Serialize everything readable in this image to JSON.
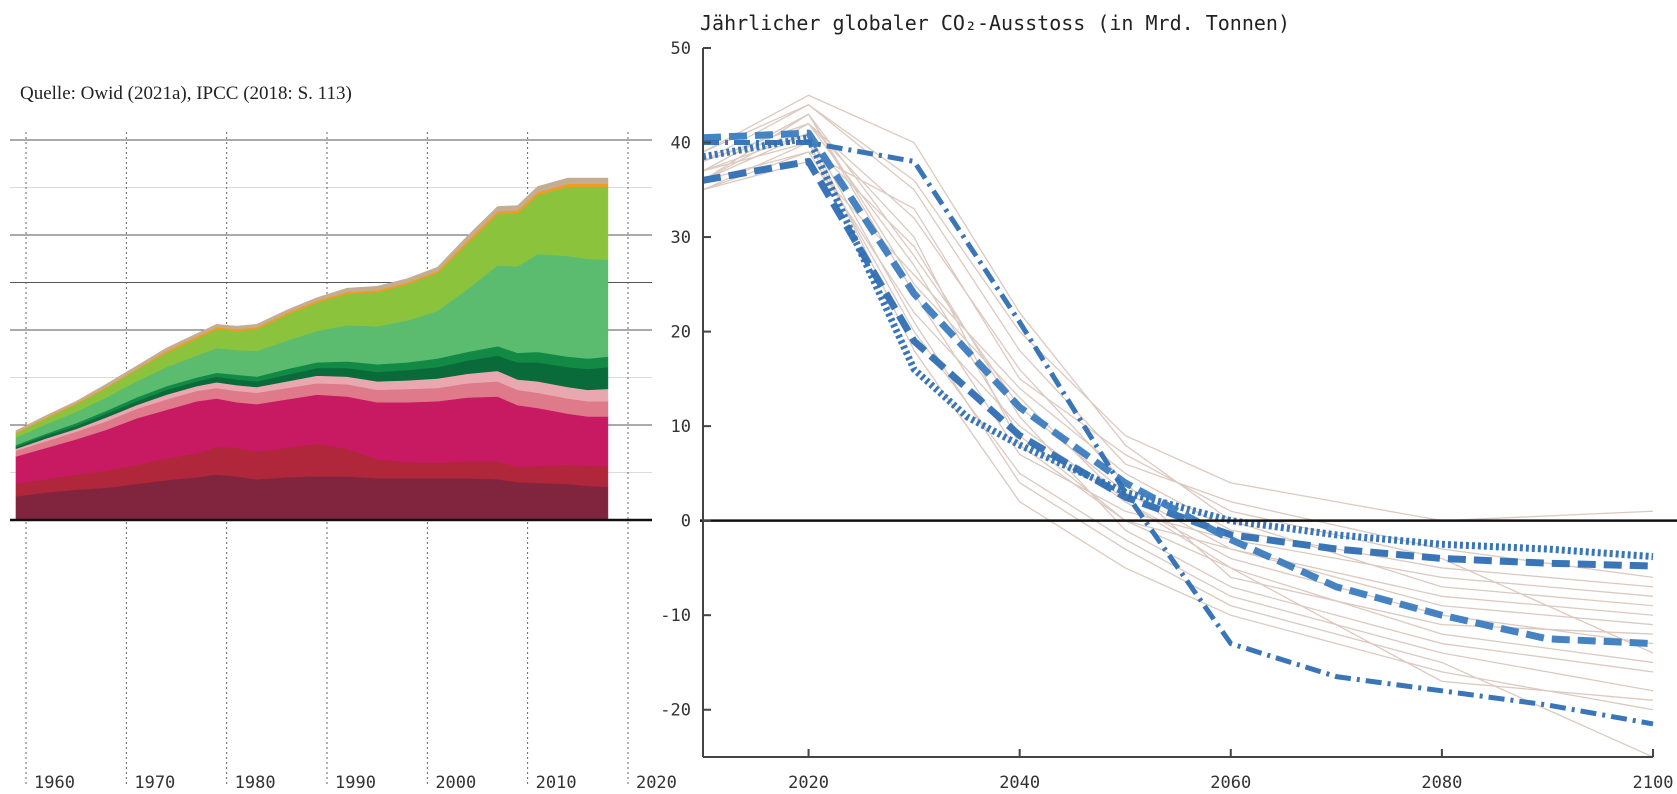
{
  "chart_data": [
    {
      "type": "area",
      "caption": "Quelle: Owid (2021a), IPCC (2018: S. 113)",
      "x_ticks": [
        "1960",
        "1970",
        "1980",
        "1990",
        "2000",
        "2010",
        "2020"
      ],
      "xlim": [
        1959,
        2021
      ],
      "ylim": [
        0,
        40
      ],
      "grid": true,
      "years": [
        1959,
        1962,
        1965,
        1968,
        1971,
        1974,
        1977,
        1979,
        1981,
        1983,
        1986,
        1989,
        1992,
        1995,
        1998,
        2001,
        2004,
        2007,
        2009,
        2011,
        2014,
        2016,
        2018
      ],
      "series": [
        {
          "color": "#81253f",
          "values": [
            2.5,
            2.9,
            3.2,
            3.4,
            3.8,
            4.2,
            4.5,
            4.8,
            4.6,
            4.3,
            4.5,
            4.6,
            4.6,
            4.4,
            4.4,
            4.4,
            4.4,
            4.3,
            4.0,
            3.9,
            3.8,
            3.6,
            3.5
          ]
        },
        {
          "color": "#b0263b",
          "values": [
            1.3,
            1.4,
            1.6,
            1.8,
            2.0,
            2.3,
            2.5,
            2.9,
            3.0,
            2.9,
            3.1,
            3.4,
            2.9,
            2.0,
            1.7,
            1.6,
            1.8,
            1.9,
            1.6,
            1.8,
            2.0,
            2.1,
            2.2
          ]
        },
        {
          "color": "#c81a63",
          "values": [
            2.9,
            3.3,
            3.7,
            4.3,
            4.9,
            5.1,
            5.5,
            5.1,
            4.8,
            5.0,
            5.1,
            5.2,
            5.5,
            6.0,
            6.3,
            6.5,
            6.7,
            6.8,
            6.5,
            6.1,
            5.4,
            5.2,
            5.2
          ]
        },
        {
          "color": "#de7a89",
          "values": [
            0.6,
            0.7,
            0.8,
            0.9,
            1.0,
            1.1,
            1.1,
            1.1,
            1.2,
            1.2,
            1.2,
            1.2,
            1.3,
            1.3,
            1.4,
            1.4,
            1.5,
            1.6,
            1.6,
            1.6,
            1.6,
            1.6,
            1.6
          ]
        },
        {
          "color": "#e9a8b0",
          "values": [
            0.2,
            0.3,
            0.3,
            0.4,
            0.4,
            0.5,
            0.5,
            0.6,
            0.6,
            0.6,
            0.7,
            0.8,
            0.8,
            0.9,
            0.9,
            1.0,
            1.0,
            1.1,
            1.1,
            1.2,
            1.2,
            1.2,
            1.3
          ]
        },
        {
          "color": "#0a6b3a",
          "values": [
            0.2,
            0.3,
            0.3,
            0.4,
            0.4,
            0.5,
            0.5,
            0.6,
            0.6,
            0.6,
            0.7,
            0.8,
            0.9,
            1.0,
            1.1,
            1.2,
            1.4,
            1.6,
            1.8,
            2.0,
            2.1,
            2.2,
            2.3
          ]
        },
        {
          "color": "#128a45",
          "values": [
            0.2,
            0.2,
            0.3,
            0.3,
            0.4,
            0.4,
            0.4,
            0.4,
            0.5,
            0.5,
            0.6,
            0.6,
            0.7,
            0.8,
            0.8,
            0.9,
            0.9,
            1.0,
            1.0,
            1.1,
            1.1,
            1.1,
            1.1
          ]
        },
        {
          "color": "#5bbb6e",
          "values": [
            0.8,
            1.0,
            1.2,
            1.4,
            1.7,
            2.0,
            2.3,
            2.6,
            2.6,
            2.7,
            3.0,
            3.3,
            3.8,
            4.0,
            4.4,
            5.0,
            6.6,
            8.5,
            9.1,
            10.3,
            10.6,
            10.5,
            10.2
          ]
        },
        {
          "color": "#8bc43c",
          "values": [
            0.4,
            0.6,
            0.8,
            1.0,
            1.2,
            1.5,
            1.8,
            2.0,
            2.0,
            2.3,
            2.7,
            3.0,
            3.3,
            3.6,
            3.8,
            4.0,
            4.8,
            5.4,
            5.6,
            6.2,
            7.3,
            7.6,
            7.7
          ]
        },
        {
          "color": "#f39a21",
          "values": [
            0.1,
            0.1,
            0.1,
            0.1,
            0.1,
            0.2,
            0.2,
            0.2,
            0.2,
            0.2,
            0.2,
            0.2,
            0.2,
            0.2,
            0.2,
            0.2,
            0.3,
            0.3,
            0.3,
            0.3,
            0.3,
            0.3,
            0.3
          ]
        },
        {
          "color": "#c3ae93",
          "values": [
            0.2,
            0.2,
            0.2,
            0.3,
            0.3,
            0.3,
            0.3,
            0.3,
            0.3,
            0.3,
            0.3,
            0.3,
            0.4,
            0.4,
            0.4,
            0.4,
            0.5,
            0.5,
            0.5,
            0.6,
            0.6,
            0.6,
            0.6
          ]
        }
      ]
    },
    {
      "type": "line",
      "title": "Jährlicher globaler CO₂-Ausstoss (in Mrd. Tonnen)",
      "xlim": [
        2010,
        2100
      ],
      "ylim": [
        -25,
        50
      ],
      "x_ticks": [
        "2020",
        "2040",
        "2060",
        "2080",
        "2100"
      ],
      "y_ticks": [
        "50",
        "40",
        "30",
        "20",
        "10",
        "0",
        "-10",
        "-20"
      ],
      "zero_line": true,
      "highlighted": [
        {
          "style": "dotted",
          "color": "#2f6fb3",
          "points": [
            [
              2010,
              38.5
            ],
            [
              2020,
              40.5
            ],
            [
              2030,
              16
            ],
            [
              2035,
              11
            ],
            [
              2040,
              8
            ],
            [
              2050,
              3
            ],
            [
              2060,
              0
            ],
            [
              2070,
              -1.5
            ],
            [
              2080,
              -2.5
            ],
            [
              2090,
              -3
            ],
            [
              2100,
              -3.8
            ]
          ]
        },
        {
          "style": "dashed",
          "color": "#2f6fb3",
          "points": [
            [
              2010,
              36
            ],
            [
              2020,
              38
            ],
            [
              2030,
              19
            ],
            [
              2040,
              9
            ],
            [
              2050,
              2.5
            ],
            [
              2060,
              -1.5
            ],
            [
              2070,
              -3
            ],
            [
              2080,
              -4
            ],
            [
              2090,
              -4.5
            ],
            [
              2100,
              -4.8
            ]
          ]
        },
        {
          "style": "dashed",
          "color": "#3c7cc0",
          "points": [
            [
              2010,
              40.5
            ],
            [
              2020,
              41
            ],
            [
              2030,
              24
            ],
            [
              2040,
              12
            ],
            [
              2050,
              4
            ],
            [
              2060,
              -2
            ],
            [
              2070,
              -7
            ],
            [
              2080,
              -10
            ],
            [
              2090,
              -12.5
            ],
            [
              2100,
              -13
            ]
          ]
        },
        {
          "style": "dashdot",
          "color": "#2f6fb3",
          "points": [
            [
              2010,
              40
            ],
            [
              2020,
              40
            ],
            [
              2030,
              38
            ],
            [
              2040,
              21
            ],
            [
              2050,
              3
            ],
            [
              2060,
              -13
            ],
            [
              2070,
              -16.5
            ],
            [
              2080,
              -18
            ],
            [
              2090,
              -19.5
            ],
            [
              2100,
              -21.5
            ]
          ]
        }
      ],
      "background_scenarios": [
        [
          [
            2010,
            36
          ],
          [
            2020,
            42
          ],
          [
            2030,
            30
          ],
          [
            2040,
            8
          ],
          [
            2050,
            0
          ],
          [
            2060,
            -5
          ],
          [
            2080,
            -12
          ],
          [
            2100,
            -15
          ]
        ],
        [
          [
            2010,
            37
          ],
          [
            2020,
            43
          ],
          [
            2030,
            28
          ],
          [
            2040,
            12
          ],
          [
            2050,
            3
          ],
          [
            2060,
            -3
          ],
          [
            2080,
            -8
          ],
          [
            2100,
            -10
          ]
        ],
        [
          [
            2010,
            35
          ],
          [
            2020,
            40
          ],
          [
            2030,
            20
          ],
          [
            2040,
            5
          ],
          [
            2050,
            -2
          ],
          [
            2060,
            -8
          ],
          [
            2080,
            -14
          ],
          [
            2100,
            -18
          ]
        ],
        [
          [
            2010,
            38
          ],
          [
            2020,
            44
          ],
          [
            2030,
            35
          ],
          [
            2040,
            18
          ],
          [
            2050,
            6
          ],
          [
            2060,
            2
          ],
          [
            2080,
            -3
          ],
          [
            2100,
            -6
          ]
        ],
        [
          [
            2010,
            36
          ],
          [
            2020,
            39
          ],
          [
            2030,
            22
          ],
          [
            2040,
            10
          ],
          [
            2050,
            2
          ],
          [
            2060,
            -4
          ],
          [
            2080,
            -10
          ],
          [
            2100,
            -13
          ]
        ],
        [
          [
            2010,
            39
          ],
          [
            2020,
            45
          ],
          [
            2030,
            40
          ],
          [
            2040,
            22
          ],
          [
            2050,
            8
          ],
          [
            2060,
            0
          ],
          [
            2080,
            -7
          ],
          [
            2100,
            -9
          ]
        ],
        [
          [
            2010,
            37
          ],
          [
            2020,
            41
          ],
          [
            2030,
            18
          ],
          [
            2040,
            2
          ],
          [
            2050,
            -5
          ],
          [
            2060,
            -10
          ],
          [
            2080,
            -16
          ],
          [
            2100,
            -20
          ]
        ],
        [
          [
            2010,
            35
          ],
          [
            2020,
            38
          ],
          [
            2030,
            26
          ],
          [
            2040,
            14
          ],
          [
            2050,
            5
          ],
          [
            2060,
            -1
          ],
          [
            2080,
            -5
          ],
          [
            2100,
            -7
          ]
        ],
        [
          [
            2010,
            38
          ],
          [
            2020,
            42
          ],
          [
            2030,
            32
          ],
          [
            2040,
            16
          ],
          [
            2050,
            4
          ],
          [
            2060,
            -6
          ],
          [
            2080,
            -11
          ],
          [
            2100,
            -12
          ]
        ],
        [
          [
            2010,
            36
          ],
          [
            2020,
            43
          ],
          [
            2030,
            24
          ],
          [
            2040,
            7
          ],
          [
            2050,
            1
          ],
          [
            2060,
            -2
          ],
          [
            2080,
            -6
          ],
          [
            2100,
            -8
          ]
        ],
        [
          [
            2010,
            37
          ],
          [
            2020,
            40
          ],
          [
            2030,
            29
          ],
          [
            2040,
            11
          ],
          [
            2050,
            -1
          ],
          [
            2060,
            -7
          ],
          [
            2080,
            -13
          ],
          [
            2100,
            -16
          ]
        ],
        [
          [
            2010,
            39
          ],
          [
            2020,
            44
          ],
          [
            2030,
            36
          ],
          [
            2040,
            20
          ],
          [
            2050,
            9
          ],
          [
            2060,
            4
          ],
          [
            2080,
            0
          ],
          [
            2100,
            1
          ]
        ],
        [
          [
            2010,
            36
          ],
          [
            2020,
            41
          ],
          [
            2030,
            21
          ],
          [
            2040,
            4
          ],
          [
            2050,
            -3
          ],
          [
            2060,
            -9
          ],
          [
            2080,
            -15
          ],
          [
            2100,
            -25
          ]
        ],
        [
          [
            2010,
            38
          ],
          [
            2020,
            42
          ],
          [
            2030,
            27
          ],
          [
            2040,
            9
          ],
          [
            2050,
            0
          ],
          [
            2060,
            -3
          ],
          [
            2080,
            -9
          ],
          [
            2100,
            -11
          ]
        ],
        [
          [
            2010,
            35
          ],
          [
            2020,
            39
          ],
          [
            2030,
            33
          ],
          [
            2040,
            15
          ],
          [
            2050,
            7
          ],
          [
            2060,
            1
          ],
          [
            2080,
            -4
          ],
          [
            2100,
            -14
          ]
        ],
        [
          [
            2010,
            37
          ],
          [
            2020,
            43
          ],
          [
            2030,
            25
          ],
          [
            2040,
            13
          ],
          [
            2050,
            2
          ],
          [
            2060,
            -5
          ],
          [
            2080,
            -17
          ],
          [
            2100,
            -19
          ]
        ]
      ]
    }
  ]
}
